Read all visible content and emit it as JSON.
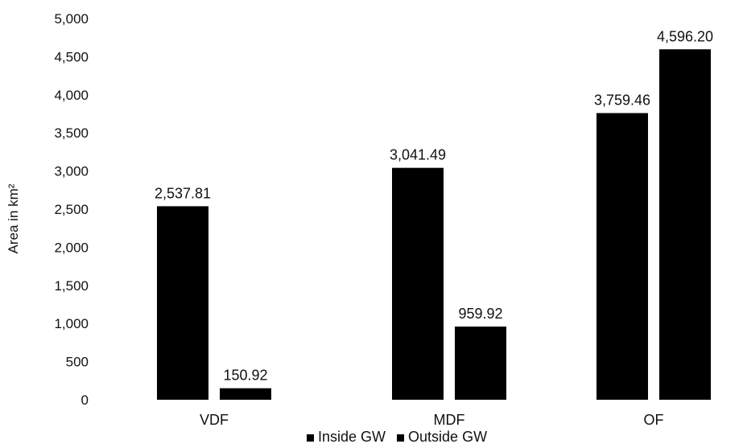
{
  "chart_data": {
    "type": "bar",
    "categories": [
      "VDF",
      "MDF",
      "OF"
    ],
    "series": [
      {
        "name": "Inside GW",
        "values": [
          2537.81,
          3041.49,
          3759.46
        ],
        "labels": [
          "2,537.81",
          "3,041.49",
          "3,759.46"
        ],
        "color": "#000000"
      },
      {
        "name": "Outside GW",
        "values": [
          150.92,
          959.92,
          4596.2
        ],
        "labels": [
          "150.92",
          "959.92",
          "4,596.20"
        ],
        "color": "#000000"
      }
    ],
    "ylabel": "Area in km²",
    "ylim": [
      0,
      5000
    ],
    "yticks": [
      0,
      500,
      1000,
      1500,
      2000,
      2500,
      3000,
      3500,
      4000,
      4500,
      5000
    ],
    "ytick_labels": [
      "0",
      "500",
      "1,000",
      "1,500",
      "2,000",
      "2,500",
      "3,000",
      "3,500",
      "4,000",
      "4,500",
      "5,000"
    ],
    "grid": false,
    "legend_position": "bottom"
  }
}
